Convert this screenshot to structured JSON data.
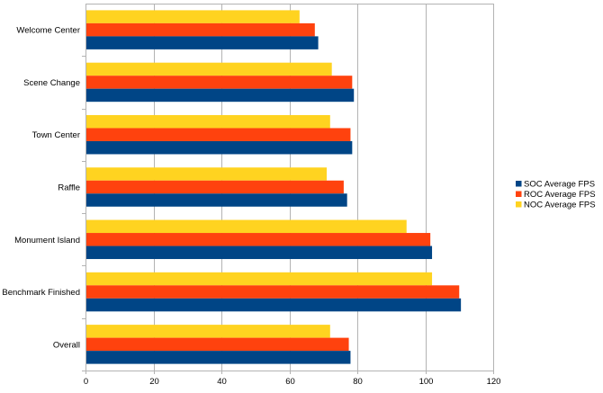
{
  "chart_data": {
    "type": "bar",
    "orientation": "horizontal",
    "title": "",
    "xlabel": "",
    "ylabel": "",
    "categories": [
      "Welcome Center",
      "Scene Change",
      "Town Center",
      "Raffle",
      "Monument Island",
      "Benchmark Finished",
      "Overall"
    ],
    "series": [
      {
        "name": "SOC  Average FPS",
        "color": "#004586",
        "values": [
          68.5,
          79,
          78.5,
          77,
          102,
          110.5,
          78
        ]
      },
      {
        "name": "ROC  Average FPS",
        "color": "#ff420e",
        "values": [
          67.5,
          78.5,
          78,
          76,
          101.5,
          110,
          77.5
        ]
      },
      {
        "name": "NOC  Average FPS",
        "color": "#ffd320",
        "values": [
          63,
          72.5,
          72,
          71,
          94.5,
          102,
          72
        ]
      }
    ],
    "xlim": [
      0,
      120
    ],
    "x_ticks": [
      "0",
      "20",
      "40",
      "60",
      "80",
      "100",
      "120"
    ],
    "grid": "vertical",
    "legend": "right"
  }
}
